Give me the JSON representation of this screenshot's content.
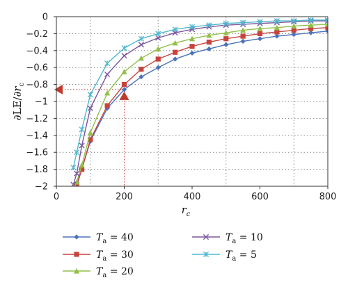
{
  "chart_data": {
    "type": "line",
    "xlabel": "r",
    "xlabel_sub": "c",
    "ylabel_parts": [
      "∂LE/∂",
      "r",
      "c"
    ],
    "xlim": [
      0,
      800
    ],
    "ylim": [
      -2,
      0
    ],
    "x_ticks": [
      0,
      200,
      400,
      600,
      800
    ],
    "y_ticks": [
      0,
      -0.2,
      -0.4,
      -0.6,
      -0.8,
      -1,
      -1.2,
      -1.4,
      -1.6,
      -1.8,
      -2
    ],
    "x_tick_labels": [
      "0",
      "200",
      "400",
      "600",
      "800"
    ],
    "y_tick_labels": [
      "0",
      "−0.2",
      "−0.4",
      "−0.6",
      "−0.8",
      "−1",
      "−1.2",
      "−1.4",
      "−1.6",
      "−1.8",
      "−2"
    ],
    "grid": "dotted vertical at 100,300,500,700; dotted horizontal",
    "legend_placement": "bottom",
    "x": [
      50,
      60,
      75,
      100,
      150,
      200,
      250,
      300,
      350,
      400,
      450,
      500,
      550,
      600,
      650,
      700,
      750,
      800
    ],
    "series": [
      {
        "name": "T_a = 40",
        "label_T": "T",
        "label_sub": "a",
        "label_val": " = 40",
        "color": "#4a72b8",
        "marker": "diamond",
        "values": [
          -2.1,
          -2.0,
          -1.8,
          -1.47,
          -1.08,
          -0.86,
          -0.71,
          -0.6,
          -0.5,
          -0.43,
          -0.38,
          -0.33,
          -0.29,
          -0.26,
          -0.23,
          -0.21,
          -0.19,
          -0.17
        ]
      },
      {
        "name": "T_a = 30",
        "label_T": "T",
        "label_sub": "a",
        "label_val": " = 30",
        "color": "#c8433e",
        "marker": "square",
        "values": [
          -2.1,
          -1.98,
          -1.8,
          -1.45,
          -1.05,
          -0.8,
          -0.62,
          -0.5,
          -0.42,
          -0.35,
          -0.3,
          -0.26,
          -0.23,
          -0.2,
          -0.18,
          -0.16,
          -0.14,
          -0.13
        ]
      },
      {
        "name": "T_a = 20",
        "label_T": "T",
        "label_sub": "a",
        "label_val": " = 20",
        "color": "#93c04a",
        "marker": "triangle",
        "values": [
          -2.05,
          -1.95,
          -1.75,
          -1.37,
          -0.9,
          -0.65,
          -0.49,
          -0.38,
          -0.31,
          -0.26,
          -0.22,
          -0.19,
          -0.16,
          -0.14,
          -0.13,
          -0.11,
          -0.1,
          -0.09
        ]
      },
      {
        "name": "T_a = 10",
        "label_T": "T",
        "label_sub": "a",
        "label_val": " = 10",
        "color": "#7b559e",
        "marker": "x",
        "values": [
          -1.98,
          -1.85,
          -1.52,
          -1.08,
          -0.68,
          -0.46,
          -0.33,
          -0.25,
          -0.19,
          -0.15,
          -0.12,
          -0.1,
          -0.09,
          -0.08,
          -0.07,
          -0.06,
          -0.05,
          -0.05
        ]
      },
      {
        "name": "T_a = 5",
        "label_T": "T",
        "label_sub": "a",
        "label_val": " = 5",
        "color": "#4fb8cf",
        "marker": "star",
        "values": [
          -1.78,
          -1.6,
          -1.33,
          -0.92,
          -0.55,
          -0.37,
          -0.26,
          -0.2,
          -0.15,
          -0.12,
          -0.1,
          -0.08,
          -0.07,
          -0.06,
          -0.05,
          -0.05,
          -0.04,
          -0.04
        ]
      }
    ],
    "annotation": {
      "x": 200,
      "y": -0.86,
      "color": "#c0392b"
    }
  }
}
